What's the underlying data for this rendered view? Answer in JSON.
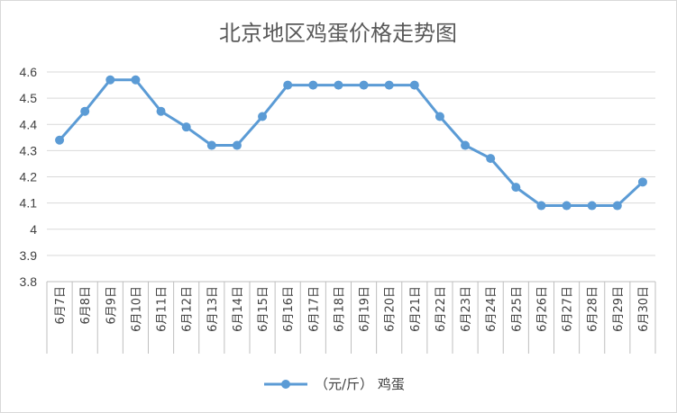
{
  "chart_data": {
    "type": "line",
    "title": "北京地区鸡蛋价格走势图",
    "xlabel": "",
    "ylabel": "",
    "ylim": [
      3.8,
      4.6
    ],
    "yticks": [
      3.8,
      3.9,
      4,
      4.1,
      4.2,
      4.3,
      4.4,
      4.5,
      4.6
    ],
    "grid": true,
    "legend_position": "bottom",
    "categories": [
      "6月7日",
      "6月8日",
      "6月9日",
      "6月10日",
      "6月11日",
      "6月12日",
      "6月13日",
      "6月14日",
      "6月15日",
      "6月16日",
      "6月17日",
      "6月18日",
      "6月19日",
      "6月20日",
      "6月21日",
      "6月22日",
      "6月23日",
      "6月24日",
      "6月25日",
      "6月26日",
      "6月27日",
      "6月28日",
      "6月29日",
      "6月30日"
    ],
    "series": [
      {
        "name": "（元/斤） 鸡蛋",
        "color": "#5b9bd5",
        "values": [
          4.34,
          4.45,
          4.57,
          4.57,
          4.45,
          4.39,
          4.32,
          4.32,
          4.43,
          4.55,
          4.55,
          4.55,
          4.55,
          4.55,
          4.55,
          4.43,
          4.32,
          4.27,
          4.16,
          4.09,
          4.09,
          4.09,
          4.09,
          4.18
        ]
      }
    ]
  }
}
